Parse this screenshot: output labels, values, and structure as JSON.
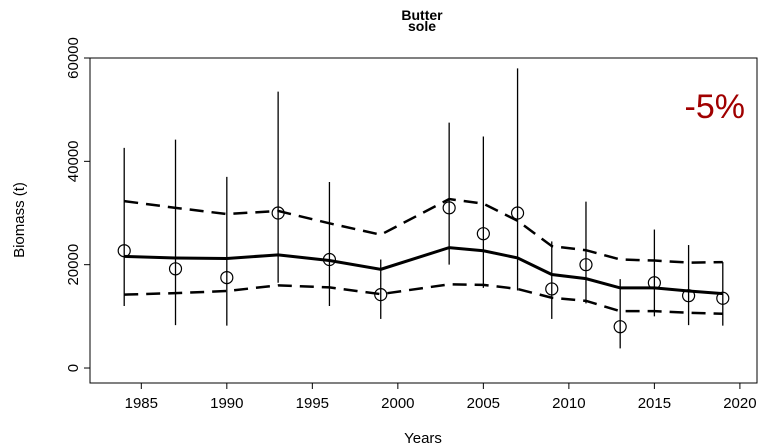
{
  "chart_data": {
    "type": "errorbar-trend",
    "title": "Butter\nsole",
    "xlabel": "Years",
    "ylabel": "Biomass (t)",
    "annotation": "-5%",
    "annotation_color": "#a00000",
    "x": [
      1984,
      1987,
      1990,
      1993,
      1996,
      1999,
      2003,
      2005,
      2007,
      2009,
      2011,
      2013,
      2015,
      2017,
      2019
    ],
    "points": {
      "values": [
        22700,
        19200,
        17500,
        30000,
        21000,
        14200,
        31000,
        26000,
        30000,
        15300,
        20000,
        8000,
        16500,
        14000,
        13500
      ],
      "lower": [
        12000,
        8300,
        8200,
        16500,
        12000,
        9500,
        20000,
        15500,
        15000,
        9500,
        12500,
        3800,
        10000,
        8300,
        8200
      ],
      "upper": [
        42600,
        44200,
        37000,
        53500,
        36000,
        21000,
        47500,
        44800,
        58000,
        24500,
        32200,
        17200,
        26800,
        23800,
        20500
      ]
    },
    "trend": {
      "mean": [
        21600,
        21300,
        21200,
        21900,
        20800,
        19100,
        23300,
        22700,
        21300,
        18100,
        17300,
        15500,
        15500,
        14900,
        14400
      ],
      "upper": [
        32300,
        31000,
        29800,
        30400,
        28000,
        25800,
        32700,
        31800,
        28500,
        23600,
        22800,
        21000,
        20800,
        20400,
        20500
      ],
      "lower": [
        14200,
        14500,
        14900,
        16000,
        15600,
        14300,
        16200,
        16100,
        15300,
        13600,
        13000,
        11000,
        11000,
        10700,
        10500
      ]
    },
    "xlim": [
      1982,
      2021
    ],
    "xticks": [
      1985,
      1990,
      1995,
      2000,
      2005,
      2010,
      2015,
      2020
    ],
    "ylim": [
      -2900,
      60000
    ],
    "yticks": [
      0,
      20000,
      40000,
      60000
    ]
  }
}
